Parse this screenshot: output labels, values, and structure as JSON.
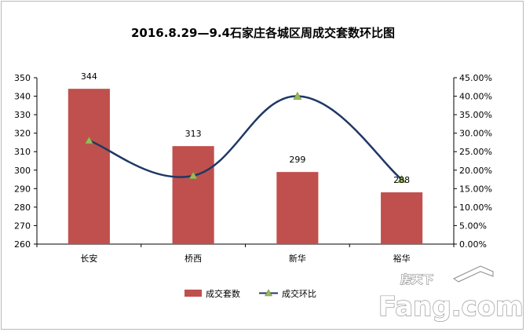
{
  "chart_data": {
    "type": "bar",
    "title": "2016.8.29—9.4石家庄各城区周成交套数环比图",
    "categories": [
      "长安",
      "桥西",
      "新华",
      "裕华"
    ],
    "series": [
      {
        "name": "成交套数",
        "type": "bar",
        "values": [
          344,
          313,
          299,
          288
        ],
        "color": "#c0504d",
        "axis": "left"
      },
      {
        "name": "成交环比",
        "type": "line",
        "values": [
          0.28,
          0.185,
          0.4,
          0.175
        ],
        "color": "#1f3864",
        "marker_color": "#9bbb59",
        "axis": "right"
      }
    ],
    "y_left": {
      "min": 260,
      "max": 350,
      "step": 10
    },
    "y_right": {
      "min": 0,
      "max": 0.45,
      "step": 0.05,
      "format": "percent-2"
    },
    "legend_position": "bottom",
    "grid": false
  },
  "watermark": {
    "top_text": "房天下",
    "brand_text": "Fang.com"
  }
}
